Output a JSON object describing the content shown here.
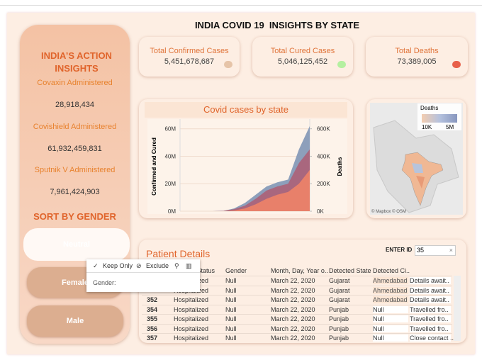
{
  "header": {
    "title": "INDIA COVID 19  INSIGHTS BY STATE"
  },
  "sidebar": {
    "title": "INDIA’S ACTION INSIGHTS",
    "vaccines": [
      {
        "label": "Covaxin Administered",
        "value": "28,918,434"
      },
      {
        "label": "Covishield Administered",
        "value": "61,932,459,831"
      },
      {
        "label": "Sputnik V Administered",
        "value": "7,961,424,903"
      }
    ],
    "gender_title": "SORT BY GENDER",
    "gender_buttons": [
      "Neutral",
      "Female",
      "Male"
    ]
  },
  "kpis": [
    {
      "label": "Total Confirmed Cases",
      "value": "5,451,678,687",
      "color": "#e6c4a8"
    },
    {
      "label": "Total Cured Cases",
      "value": "5,046,125,452",
      "color": "#b4f0a0"
    },
    {
      "label": "Total Deaths",
      "value": "73,389,005",
      "color": "#e8604a"
    }
  ],
  "chart_data": {
    "type": "area",
    "title": "Covid cases by state",
    "y_label": "Confirmed and Cured",
    "y2_label": "Deaths",
    "categories": [
      null,
      null,
      null,
      null,
      null,
      null,
      null,
      null,
      null,
      null,
      null,
      null,
      null
    ],
    "series": [
      {
        "color": "#8d9fbb",
        "axis": "y2",
        "values": [
          0,
          0,
          0,
          0,
          2000,
          20000,
          60000,
          120000,
          180000,
          210000,
          230000,
          450000,
          620000
        ]
      },
      {
        "color": "#a9677e",
        "values": [
          0,
          0,
          0,
          0,
          200000,
          1500000,
          4000000,
          9000000,
          15000000,
          18000000,
          20000000,
          35000000,
          45000000
        ]
      },
      {
        "color": "#e8806a",
        "values": [
          0,
          0,
          0,
          0,
          0,
          500000,
          2000000,
          5000000,
          9000000,
          12000000,
          14000000,
          20000000,
          30000000
        ]
      }
    ],
    "ylim": [
      0,
      65000000
    ],
    "yticks": [
      {
        "value": 0,
        "label": "0M"
      },
      {
        "value": 20000000,
        "label": "20M"
      },
      {
        "value": 40000000,
        "label": "40M"
      },
      {
        "value": 60000000,
        "label": "60M"
      }
    ],
    "y2lim": [
      0,
      650000
    ],
    "y2ticks": [
      {
        "value": 0,
        "label": "0K"
      },
      {
        "value": 200000,
        "label": "200K"
      },
      {
        "value": 400000,
        "label": "400K"
      },
      {
        "value": 600000,
        "label": "600K"
      }
    ],
    "grid": true
  },
  "map": {
    "legend_title": "Deaths",
    "legend_min": "10K",
    "legend_max": "5M",
    "attribution": "© Mapbox © OSM"
  },
  "patients": {
    "title": "Patient Details",
    "search_label": "ENTER ID",
    "search_value": "35",
    "columns": [
      null,
      "Current Status",
      "Gender",
      "Month, Day, Year o..",
      "Detected State",
      "Detected Ci..",
      null
    ],
    "rows": [
      [
        null,
        "Hospitalized",
        "Null",
        "March 22, 2020",
        "Gujarat",
        "Ahmedabad",
        "Details await.."
      ],
      [
        null,
        "Hospitalized",
        "Null",
        "March 22, 2020",
        "Gujarat",
        "Ahmedabad",
        "Details await.."
      ],
      [
        "352",
        "Hospitalized",
        "Null",
        "March 22, 2020",
        "Gujarat",
        "Ahmedabad",
        "Details await.."
      ],
      [
        "354",
        "Hospitalized",
        "Null",
        "March 22, 2020",
        "Punjab",
        "Null",
        "Travelled fro.."
      ],
      [
        "355",
        "Hospitalized",
        "Null",
        "March 22, 2020",
        "Punjab",
        "Null",
        "Travelled fro.."
      ],
      [
        "356",
        "Hospitalized",
        "Null",
        "March 22, 2020",
        "Punjab",
        "Null",
        "Travelled fro.."
      ],
      [
        "357",
        "Hospitalized",
        "Null",
        "March 22, 2020",
        "Punjab",
        "Null",
        "Close contact .."
      ]
    ]
  },
  "context_menu": {
    "keep_only": "Keep Only",
    "exclude": "Exclude",
    "field_label": "Gender:"
  }
}
